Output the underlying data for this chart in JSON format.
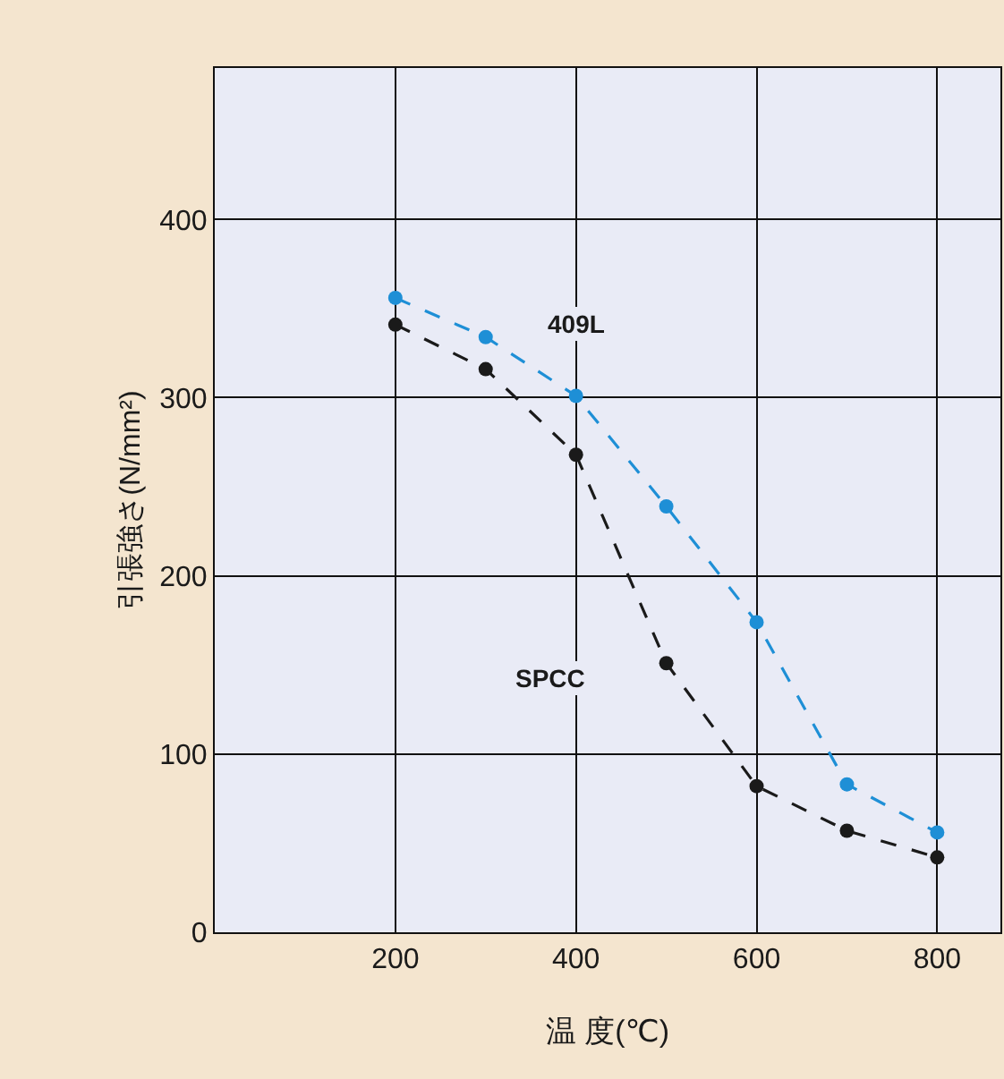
{
  "chart_data": {
    "type": "line",
    "xlabel": "温 度(℃)",
    "ylabel": "引張強さ(N/mm²)",
    "x": [
      200,
      300,
      400,
      500,
      600,
      700,
      800
    ],
    "series": [
      {
        "name": "409L",
        "color": "#1e8fd6",
        "values": [
          356,
          334,
          301,
          239,
          174,
          83,
          56
        ]
      },
      {
        "name": "SPCC",
        "color": "#1a1a1a",
        "values": [
          341,
          316,
          268,
          151,
          82,
          57,
          42
        ]
      }
    ],
    "xlim": [
      0,
      870
    ],
    "ylim": [
      0,
      485
    ],
    "xticks": [
      200,
      400,
      600,
      800
    ],
    "yticks": [
      0,
      100,
      200,
      300,
      400
    ],
    "grid": true,
    "legend": false,
    "marker": "circle",
    "line_style": "dashed"
  }
}
